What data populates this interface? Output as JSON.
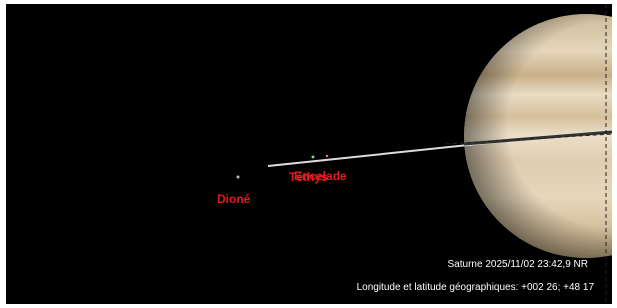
{
  "labels": {
    "moons": [
      "Dioné",
      "Téthys",
      "Encelade"
    ]
  },
  "status": {
    "object_time": "Saturne 2025/11/02 23:42,9 NR",
    "location": "Longitude et latitude géographiques: +002 26; +48 17"
  }
}
